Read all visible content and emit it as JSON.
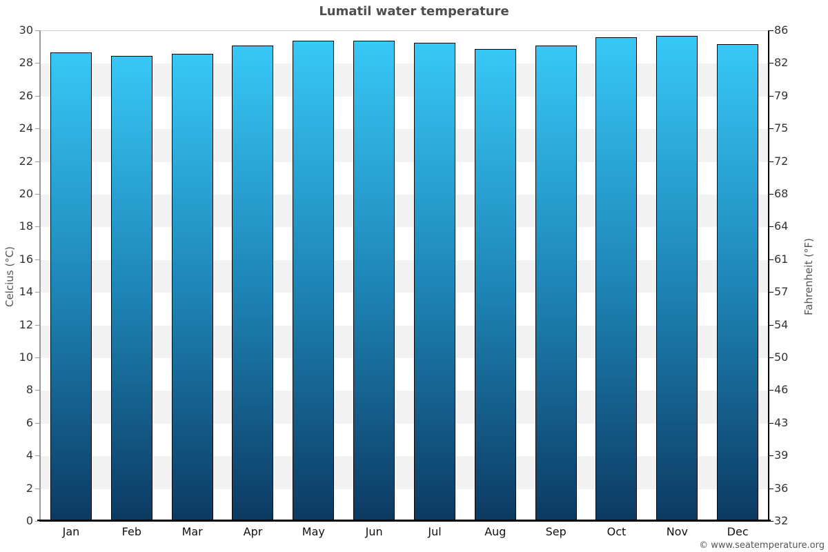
{
  "page": {
    "title": "Lumatil water temperature",
    "copyright": "© www.seatemperature.org"
  },
  "chart_data": {
    "type": "bar",
    "title": "Lumatil water temperature",
    "categories": [
      "Jan",
      "Feb",
      "Mar",
      "Apr",
      "May",
      "Jun",
      "Jul",
      "Aug",
      "Sep",
      "Oct",
      "Nov",
      "Dec"
    ],
    "values": [
      28.7,
      28.5,
      28.6,
      29.1,
      29.4,
      29.4,
      29.3,
      28.9,
      29.1,
      29.6,
      29.7,
      29.2
    ],
    "unit": "°C",
    "xlabel": "",
    "ylabel_left": "Celcius (°C)",
    "ylabel_right": "Fahrenheit (°F)",
    "ylim": [
      0,
      30
    ],
    "celsius_ticks": [
      30,
      28,
      26,
      24,
      22,
      20,
      18,
      16,
      14,
      12,
      10,
      8,
      6,
      4,
      2,
      0
    ],
    "fahrenheit_tick_labels": [
      "86",
      "82",
      "79",
      "75",
      "72",
      "68",
      "64",
      "61",
      "57",
      "54",
      "50",
      "46",
      "43",
      "39",
      "36",
      "32"
    ],
    "grid": "alternating horizontal bands every 2°C, gray and white",
    "legend": "none",
    "colors": {
      "bar_gradient_top": "#37c8f6",
      "bar_gradient_mid": "#1e86b8",
      "bar_gradient_bottom": "#0c3a62",
      "bar_border": "#000000",
      "band_gray": "#f2f2f2",
      "band_white": "#ffffff",
      "left_axis_line": "#999999",
      "right_axis_line": "#000000",
      "bottom_axis_line": "#000000",
      "title_text": "#4d4d4d",
      "tick_text": "#333333"
    }
  }
}
